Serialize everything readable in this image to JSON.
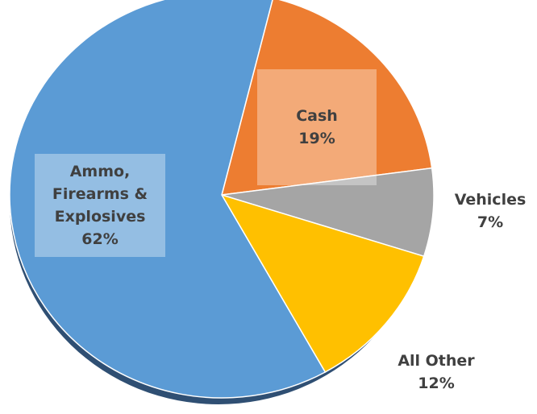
{
  "chart_data": {
    "type": "pie",
    "categories": [
      "Cash",
      "Vehicles",
      "All Other",
      "Ammo, Firearms & Explosives"
    ],
    "values": [
      19,
      7,
      12,
      62
    ],
    "value_labels": [
      "19%",
      "7%",
      "12%",
      "62%"
    ],
    "colors": [
      "#ed7d31",
      "#a5a5a5",
      "#ffc000",
      "#5b9bd5"
    ]
  }
}
